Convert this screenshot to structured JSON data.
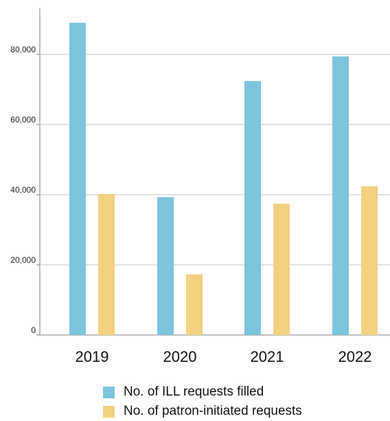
{
  "chart_data": {
    "type": "bar",
    "categories": [
      "2019",
      "2020",
      "2021",
      "2022"
    ],
    "series": [
      {
        "name": "No. of ILL requests filled",
        "values": [
          89000,
          39300,
          72400,
          79400
        ],
        "color": "#7cc4dc"
      },
      {
        "name": "No. of patron-initiated requests",
        "values": [
          40200,
          17300,
          37400,
          42400
        ],
        "color": "#f2d180"
      }
    ],
    "yticks": [
      0,
      20000,
      40000,
      60000,
      80000
    ],
    "ytick_labels": [
      "0",
      "20,000",
      "40,000",
      "60,000",
      "80,000"
    ],
    "ylim": [
      0,
      94000
    ],
    "grid": true,
    "legend_position": "bottom"
  }
}
